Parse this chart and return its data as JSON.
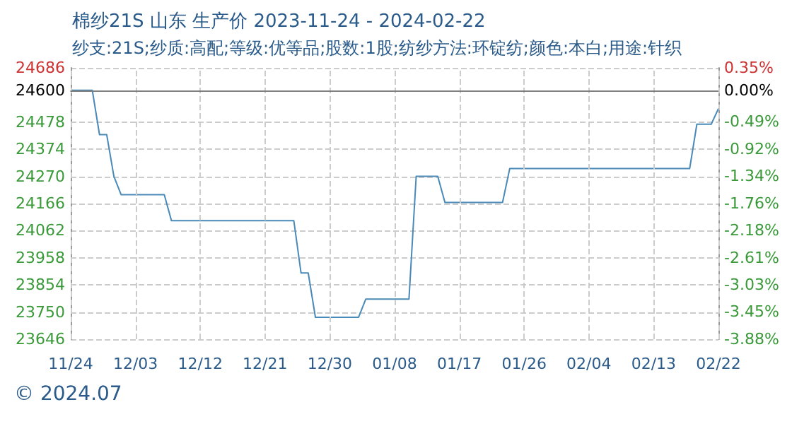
{
  "chart_data": {
    "type": "line",
    "title": "棉纱21S 山东 生产价 2023-11-24 - 2024-02-22",
    "subtitle": "纱支:21S;纱质:高配;等级:优等品;股数:1股;纺纱方法:环锭纺;颜色:本白;用途:针织",
    "x": [
      "2023-11-24",
      "2023-11-27",
      "2023-11-28",
      "2023-11-29",
      "2023-11-30",
      "2023-12-01",
      "2023-12-07",
      "2023-12-08",
      "2023-12-25",
      "2023-12-26",
      "2023-12-27",
      "2023-12-28",
      "2024-01-03",
      "2024-01-04",
      "2024-01-10",
      "2024-01-11",
      "2024-01-14",
      "2024-01-15",
      "2024-01-23",
      "2024-01-24",
      "2024-02-18",
      "2024-02-19",
      "2024-02-21",
      "2024-02-22"
    ],
    "series": [
      {
        "color": "#4a8ab8",
        "values": [
          24600,
          24600,
          24430,
          24430,
          24270,
          24200,
          24200,
          24100,
          24100,
          23900,
          23900,
          23730,
          23730,
          23800,
          23800,
          24270,
          24270,
          24170,
          24170,
          24300,
          24300,
          24470,
          24470,
          24530
        ]
      }
    ],
    "ylim": [
      23646,
      24686
    ],
    "yticks": [
      23646,
      23750,
      23854,
      23958,
      24062,
      24166,
      24270,
      24374,
      24478,
      24600,
      24686
    ],
    "y2lim": [
      -3.88,
      0.35
    ],
    "y2ticks": [
      {
        "value": -3.88,
        "label": "-3.88%"
      },
      {
        "value": -3.45,
        "label": "-3.45%"
      },
      {
        "value": -3.03,
        "label": "-3.03%"
      },
      {
        "value": -2.61,
        "label": "-2.61%"
      },
      {
        "value": -2.18,
        "label": "-2.18%"
      },
      {
        "value": -1.76,
        "label": "-1.76%"
      },
      {
        "value": -1.34,
        "label": "-1.34%"
      },
      {
        "value": -0.92,
        "label": "-0.92%"
      },
      {
        "value": -0.49,
        "label": "-0.49%"
      },
      {
        "value": 0,
        "label": "0.00%"
      },
      {
        "value": 0.35,
        "label": "0.35%"
      }
    ],
    "xlim": [
      "2023-11-24",
      "2024-02-22"
    ],
    "xticks": [
      {
        "value": "2023-11-24",
        "label": "11/24"
      },
      {
        "value": "2023-12-03",
        "label": "12/03"
      },
      {
        "value": "2023-12-12",
        "label": "12/12"
      },
      {
        "value": "2023-12-21",
        "label": "12/21"
      },
      {
        "value": "2023-12-30",
        "label": "12/30"
      },
      {
        "value": "2024-01-08",
        "label": "01/08"
      },
      {
        "value": "2024-01-17",
        "label": "01/17"
      },
      {
        "value": "2024-01-26",
        "label": "01/26"
      },
      {
        "value": "2024-02-04",
        "label": "02/04"
      },
      {
        "value": "2024-02-13",
        "label": "02/13"
      },
      {
        "value": "2024-02-22",
        "label": "02/22"
      }
    ],
    "ref_lines": [
      {
        "axis": "y",
        "value": 24600,
        "color": "#808080"
      }
    ],
    "grid": true,
    "marker": "none",
    "line_style": "solid",
    "annotations": [
      "© 2024.07"
    ]
  }
}
